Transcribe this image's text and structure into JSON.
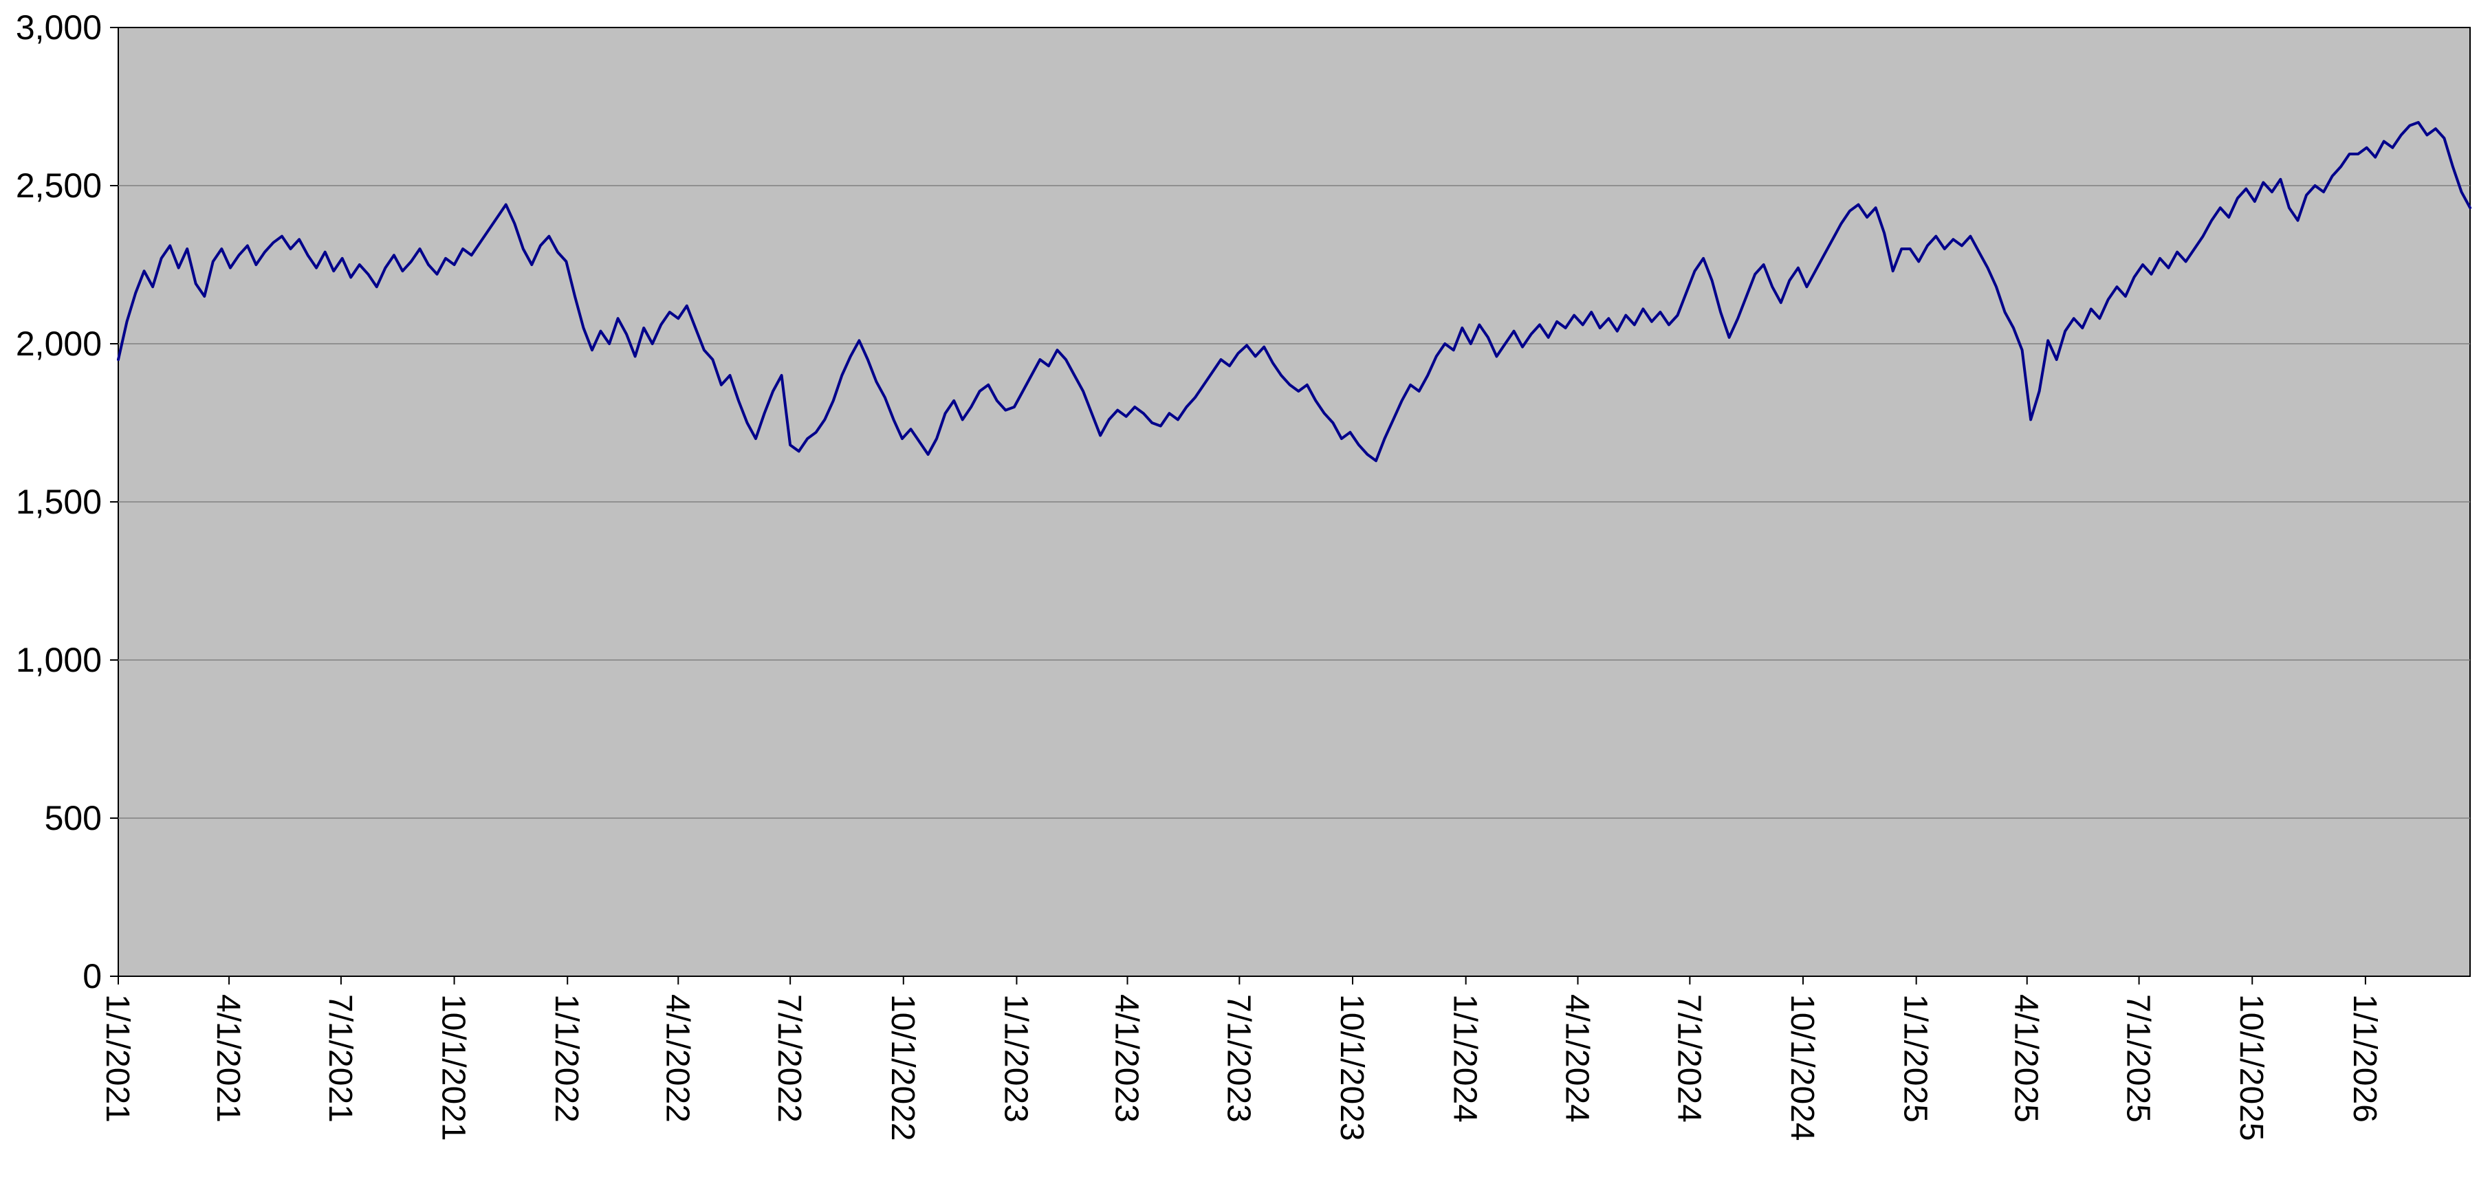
{
  "chart_data": {
    "type": "line",
    "title": "",
    "xlabel": "",
    "ylabel": "",
    "legend": "none",
    "grid": "horizontal",
    "plot_bg_color": "#C0C0C0",
    "outer_bg_color": "#FFFFFF",
    "line_color": "#00008B",
    "grid_color": "#808080",
    "axis_color": "#000000",
    "ylim": [
      0,
      3000
    ],
    "y_ticks": [
      {
        "value": 0,
        "label": "0"
      },
      {
        "value": 500,
        "label": "500"
      },
      {
        "value": 1000,
        "label": "1,000"
      },
      {
        "value": 1500,
        "label": "1,500"
      },
      {
        "value": 2000,
        "label": "2,000"
      },
      {
        "value": 2500,
        "label": "2,500"
      },
      {
        "value": 3000,
        "label": "3,000"
      }
    ],
    "x_start_date": "1/1/2021",
    "x_step_days": 7,
    "x_tick_labels": [
      "1/1/2021",
      "4/1/2021",
      "7/1/2021",
      "10/1/2021",
      "1/1/2022",
      "4/1/2022",
      "7/1/2022",
      "10/1/2022",
      "1/1/2023",
      "4/1/2023",
      "7/1/2023",
      "10/1/2023",
      "1/1/2024",
      "4/1/2024",
      "7/1/2024",
      "10/1/2024",
      "1/1/2025",
      "4/1/2025",
      "7/1/2025",
      "10/1/2025",
      "1/1/2026"
    ],
    "values": [
      1950,
      2070,
      2160,
      2230,
      2180,
      2270,
      2310,
      2240,
      2300,
      2190,
      2150,
      2260,
      2300,
      2240,
      2280,
      2310,
      2250,
      2290,
      2320,
      2340,
      2300,
      2330,
      2280,
      2240,
      2290,
      2230,
      2270,
      2210,
      2250,
      2220,
      2180,
      2240,
      2280,
      2230,
      2260,
      2300,
      2250,
      2220,
      2270,
      2250,
      2300,
      2280,
      2320,
      2360,
      2400,
      2440,
      2380,
      2300,
      2250,
      2310,
      2340,
      2290,
      2260,
      2150,
      2050,
      1980,
      2040,
      2000,
      2080,
      2030,
      1960,
      2050,
      2000,
      2060,
      2100,
      2080,
      2120,
      2050,
      1980,
      1950,
      1870,
      1900,
      1820,
      1750,
      1700,
      1780,
      1850,
      1900,
      1680,
      1660,
      1700,
      1720,
      1760,
      1820,
      1900,
      1960,
      2010,
      1950,
      1880,
      1830,
      1760,
      1700,
      1730,
      1690,
      1650,
      1700,
      1780,
      1820,
      1760,
      1800,
      1850,
      1870,
      1820,
      1790,
      1800,
      1850,
      1900,
      1950,
      1930,
      1980,
      1950,
      1900,
      1850,
      1780,
      1710,
      1760,
      1790,
      1770,
      1800,
      1780,
      1750,
      1740,
      1780,
      1760,
      1800,
      1830,
      1870,
      1910,
      1950,
      1930,
      1970,
      1995,
      1960,
      1990,
      1940,
      1900,
      1870,
      1850,
      1870,
      1820,
      1780,
      1750,
      1700,
      1720,
      1680,
      1650,
      1630,
      1700,
      1760,
      1820,
      1870,
      1850,
      1900,
      1960,
      2000,
      1980,
      2050,
      2000,
      2060,
      2020,
      1960,
      2000,
      2040,
      1990,
      2030,
      2060,
      2020,
      2070,
      2050,
      2090,
      2060,
      2100,
      2050,
      2080,
      2040,
      2090,
      2060,
      2110,
      2070,
      2100,
      2060,
      2090,
      2160,
      2230,
      2270,
      2200,
      2100,
      2020,
      2080,
      2150,
      2220,
      2250,
      2180,
      2130,
      2200,
      2240,
      2180,
      2230,
      2280,
      2330,
      2380,
      2420,
      2440,
      2400,
      2430,
      2350,
      2230,
      2300,
      2300,
      2260,
      2310,
      2340,
      2300,
      2330,
      2310,
      2340,
      2290,
      2240,
      2180,
      2100,
      2050,
      1980,
      1760,
      1850,
      2010,
      1950,
      2040,
      2080,
      2050,
      2110,
      2080,
      2140,
      2180,
      2150,
      2210,
      2250,
      2220,
      2270,
      2240,
      2290,
      2260,
      2300,
      2340,
      2390,
      2430,
      2400,
      2460,
      2490,
      2450,
      2510,
      2480,
      2520,
      2430,
      2390,
      2470,
      2500,
      2480,
      2530,
      2560,
      2600,
      2600,
      2620,
      2590,
      2640,
      2620,
      2660,
      2690,
      2700,
      2660,
      2680,
      2650,
      2560,
      2480,
      2430
    ]
  }
}
